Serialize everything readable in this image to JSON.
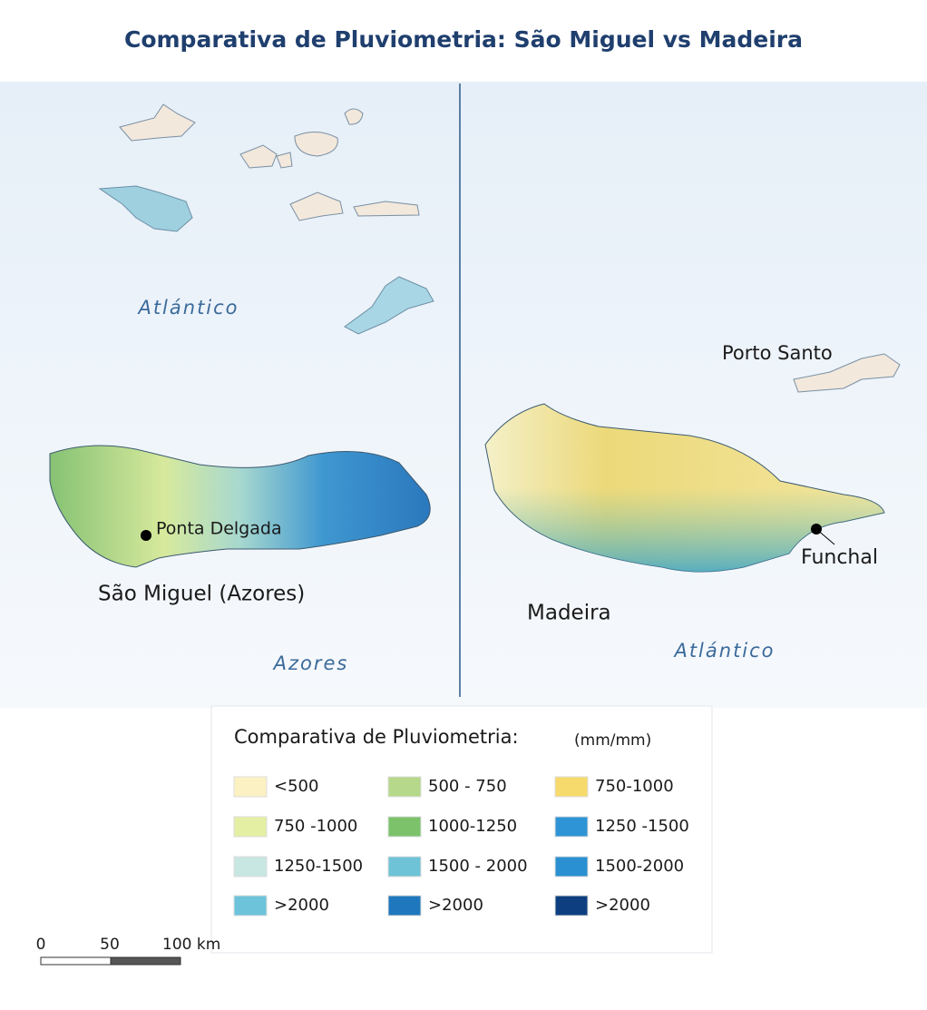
{
  "header": {
    "title": "Comparativa de Pluviometria: São Miguel vs Madeira"
  },
  "panels": [
    {
      "sea_labels": [
        "Atlántico",
        "Azores"
      ],
      "island_label": "São Miguel (Azores)",
      "city": "Ponta Delgada"
    },
    {
      "other_island": "Porto Santo",
      "island_label": "Madeira",
      "city": "Funchal",
      "sea_label": "Atlántico"
    }
  ],
  "legend": {
    "title": "Comparativa de Pluviometria:",
    "unit": "(mm/mm)",
    "items": [
      {
        "label": "<500",
        "color": "#fcf1c3"
      },
      {
        "label": "500 - 750",
        "color": "#b6d88a"
      },
      {
        "label": "750-1000",
        "color": "#f6da6c"
      },
      {
        "label": "750 -1000",
        "color": "#e5efa3"
      },
      {
        "label": "1000-1250",
        "color": "#7bc26b"
      },
      {
        "label": "1250 -1500",
        "color": "#2f94d5"
      },
      {
        "label": "1250-1500",
        "color": "#c8e6e2"
      },
      {
        "label": "1500 - 2000",
        "color": "#6fc3d6"
      },
      {
        "label": "1500-2000",
        "color": "#2a90d1"
      },
      {
        "label": ">2000",
        "color": "#6cc3da"
      },
      {
        "label": ">2000",
        "color": "#1f78bd"
      },
      {
        "label": ">2000",
        "color": "#0d3f80"
      }
    ]
  },
  "scale_bar": {
    "labels": [
      "0",
      "50",
      "100 km"
    ]
  }
}
